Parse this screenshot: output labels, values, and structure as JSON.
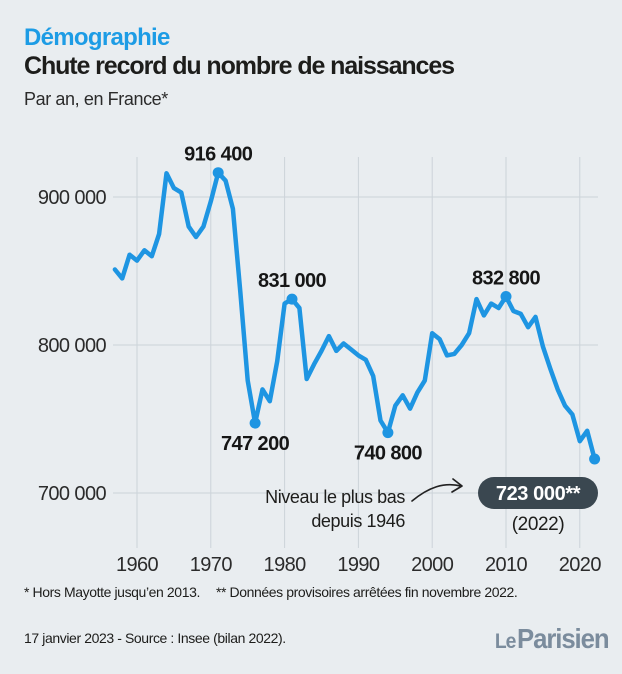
{
  "header": {
    "kicker": "Démographie",
    "title": "Chute record du nombre de naissances",
    "subtitle": "Par an, en France*"
  },
  "chart_data": {
    "type": "line",
    "title": "Chute record du nombre de naissances",
    "subtitle": "Par an, en France*",
    "xlabel": "",
    "ylabel": "",
    "grid": true,
    "line_color": "#1e95e2",
    "ylim": [
      660000,
      930000
    ],
    "y_ticks": {
      "values": [
        900000,
        800000,
        700000
      ],
      "labels": [
        "900 000",
        "800 000",
        "700 000"
      ]
    },
    "x_ticks": [
      1960,
      1970,
      1980,
      1990,
      2000,
      2010,
      2020
    ],
    "years": [
      1957,
      1958,
      1959,
      1960,
      1961,
      1962,
      1963,
      1964,
      1965,
      1966,
      1967,
      1968,
      1969,
      1970,
      1971,
      1972,
      1973,
      1974,
      1975,
      1976,
      1977,
      1978,
      1979,
      1980,
      1981,
      1982,
      1983,
      1984,
      1985,
      1986,
      1987,
      1988,
      1989,
      1990,
      1991,
      1992,
      1993,
      1994,
      1995,
      1996,
      1997,
      1998,
      1999,
      2000,
      2001,
      2002,
      2003,
      2004,
      2005,
      2006,
      2007,
      2008,
      2009,
      2010,
      2011,
      2012,
      2013,
      2014,
      2015,
      2016,
      2017,
      2018,
      2019,
      2020,
      2021,
      2022
    ],
    "values": [
      851000,
      845000,
      861000,
      857000,
      864000,
      860000,
      875000,
      916000,
      906000,
      903000,
      880000,
      873000,
      880000,
      897000,
      916400,
      911000,
      892000,
      836000,
      776000,
      747200,
      770000,
      762000,
      789000,
      828000,
      831000,
      825000,
      777000,
      787000,
      796000,
      806000,
      796000,
      801000,
      797000,
      793000,
      790000,
      779000,
      749000,
      740800,
      759000,
      766000,
      757000,
      768000,
      776000,
      808000,
      804000,
      793000,
      794000,
      800000,
      808000,
      831000,
      820000,
      828000,
      825000,
      832800,
      823000,
      821000,
      812000,
      819000,
      799000,
      784000,
      770000,
      759000,
      753000,
      735000,
      742000,
      723000
    ],
    "callouts": [
      {
        "year": 1971,
        "value": 916400,
        "label": "916 400",
        "label_pos": "above"
      },
      {
        "year": 1976,
        "value": 747200,
        "label": "747 200",
        "label_pos": "below"
      },
      {
        "year": 1981,
        "value": 831000,
        "label": "831 000",
        "label_pos": "above"
      },
      {
        "year": 1994,
        "value": 740800,
        "label": "740 800",
        "label_pos": "below"
      },
      {
        "year": 2010,
        "value": 832800,
        "label": "832 800",
        "label_pos": "above"
      },
      {
        "year": 2022,
        "value": 723000,
        "label": "",
        "label_pos": "badge"
      }
    ],
    "annotation": {
      "line1": "Niveau le plus bas",
      "line2": "depuis 1946"
    },
    "badge": {
      "value": "723 000**",
      "year_label": "(2022)"
    }
  },
  "footnotes": {
    "note1": "* Hors Mayotte jusqu’en 2013.",
    "note2": "** Données provisoires arrêtées fin novembre 2022."
  },
  "source": "17 janvier 2023 - Source : Insee (bilan 2022).",
  "logo": {
    "le": "Le",
    "parisien": "Parisien"
  },
  "colors": {
    "background": "#e9edf0",
    "grid": "#ccd3d9",
    "line_blue": "#1e95e2",
    "accent_blue": "#1d9ce5",
    "badge_bg": "#3a4750",
    "text_dark": "#1d1d1b",
    "text_gray": "#2b2b2b",
    "logo_gray": "#7b8c9d"
  }
}
